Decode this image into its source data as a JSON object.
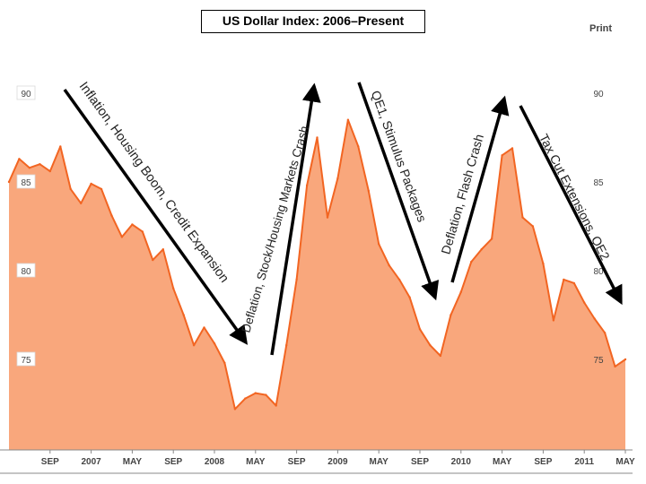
{
  "chart_data": {
    "type": "area",
    "title": "US Dollar Index: 2006–Present",
    "xlabel": "",
    "ylabel": "",
    "ylim": [
      71,
      92
    ],
    "yticks": [
      75,
      80,
      85,
      90
    ],
    "x_tick_labels": [
      "SEP",
      "2007",
      "MAY",
      "SEP",
      "2008",
      "MAY",
      "SEP",
      "2009",
      "MAY",
      "SEP",
      "2010",
      "MAY",
      "SEP",
      "2011",
      "MAY"
    ],
    "x_tick_dates": [
      "2006-09",
      "2007-01",
      "2007-05",
      "2007-09",
      "2008-01",
      "2008-05",
      "2008-09",
      "2009-01",
      "2009-05",
      "2009-09",
      "2010-01",
      "2010-05",
      "2010-09",
      "2011-01",
      "2011-05"
    ],
    "x_range": [
      "2006-05",
      "2011-05"
    ],
    "grid": false,
    "fill_color": "#f9a77c",
    "line_color": "#f26522",
    "series": [
      {
        "x": [
          "2006-05",
          "2006-06",
          "2006-07",
          "2006-08",
          "2006-09",
          "2006-10",
          "2006-11",
          "2006-12",
          "2007-01",
          "2007-02",
          "2007-03",
          "2007-04",
          "2007-05",
          "2007-06",
          "2007-07",
          "2007-08",
          "2007-09",
          "2007-10",
          "2007-11",
          "2007-12",
          "2008-01",
          "2008-02",
          "2008-03",
          "2008-04",
          "2008-05",
          "2008-06",
          "2008-07",
          "2008-08",
          "2008-09",
          "2008-10",
          "2008-11",
          "2008-12",
          "2009-01",
          "2009-02",
          "2009-03",
          "2009-04",
          "2009-05",
          "2009-06",
          "2009-07",
          "2009-08",
          "2009-09",
          "2009-10",
          "2009-11",
          "2009-12",
          "2010-01",
          "2010-02",
          "2010-03",
          "2010-04",
          "2010-05",
          "2010-06",
          "2010-07",
          "2010-08",
          "2010-09",
          "2010-10",
          "2010-11",
          "2010-12",
          "2011-01",
          "2011-02",
          "2011-03",
          "2011-04",
          "2011-05"
        ],
        "values": [
          85.0,
          86.3,
          85.8,
          86.0,
          85.6,
          87.0,
          84.6,
          83.8,
          84.9,
          84.6,
          83.1,
          81.9,
          82.6,
          82.2,
          80.6,
          81.2,
          79.0,
          77.5,
          75.8,
          76.8,
          75.9,
          74.8,
          72.2,
          72.8,
          73.1,
          73.0,
          72.4,
          75.8,
          79.5,
          84.8,
          87.5,
          83.0,
          85.2,
          88.5,
          87.0,
          84.5,
          81.5,
          80.3,
          79.5,
          78.5,
          76.7,
          75.8,
          75.2,
          77.5,
          78.8,
          80.5,
          81.2,
          81.8,
          86.5,
          86.9,
          83.0,
          82.5,
          80.4,
          77.2,
          79.5,
          79.3,
          78.2,
          77.3,
          76.5,
          74.6,
          75.0
        ]
      }
    ],
    "annotations": [
      "Inflation, Housing Boom, Credit Expansion",
      "Deflation, Stock/Housing Markets Crash",
      "QE1, Stimulus Packages",
      "Deflation, Flash Crash",
      "Tax Cut Extensions, QE2"
    ]
  },
  "ui": {
    "print_label": "Print"
  }
}
